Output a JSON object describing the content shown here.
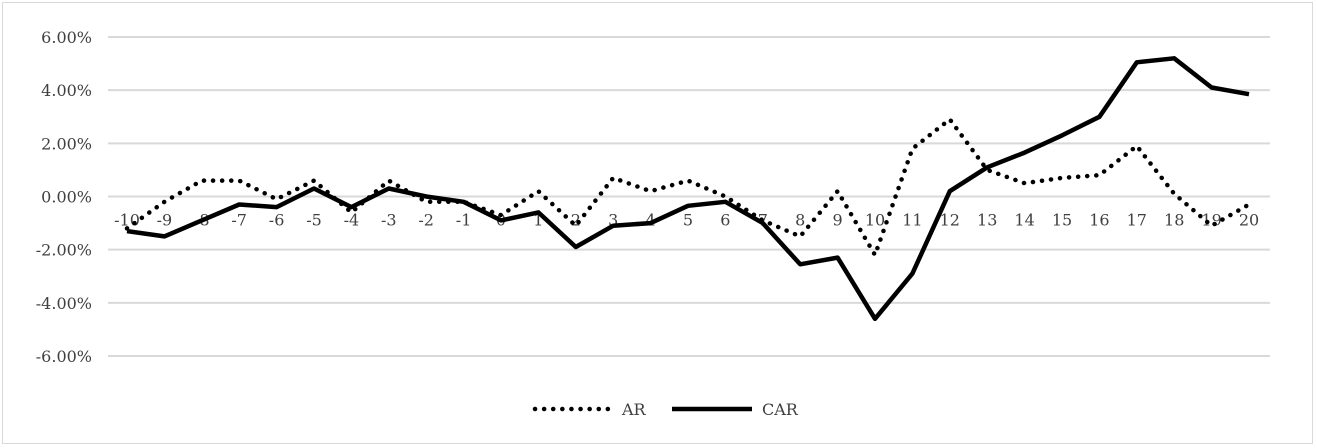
{
  "chart_data": {
    "type": "line",
    "title": "",
    "xlabel": "",
    "ylabel": "",
    "x": [
      -10,
      -9,
      -8,
      -7,
      -6,
      -5,
      -4,
      -3,
      -2,
      -1,
      0,
      1,
      2,
      3,
      4,
      5,
      6,
      7,
      8,
      9,
      10,
      11,
      12,
      13,
      14,
      15,
      16,
      17,
      18,
      19,
      20
    ],
    "x_tick_labels": [
      "-10",
      "-9",
      "-8",
      "-7",
      "-6",
      "-5",
      "-4",
      "-3",
      "-2",
      "-1",
      "0",
      "1",
      "2",
      "3",
      "4",
      "5",
      "6",
      "7",
      "8",
      "9",
      "10",
      "11",
      "12",
      "13",
      "14",
      "15",
      "16",
      "17",
      "18",
      "19",
      "20"
    ],
    "ylim": [
      -6,
      6
    ],
    "y_ticks": [
      6,
      4,
      2,
      0,
      -2,
      -4,
      -6
    ],
    "y_tick_labels": [
      "6.00%",
      "4.00%",
      "2.00%",
      "0.00%",
      "-2.00%",
      "-4.00%",
      "-6.00%"
    ],
    "y_unit": "%",
    "grid": true,
    "legend_position": "bottom",
    "series": [
      {
        "name": "AR",
        "style": "dotted",
        "color": "#000000",
        "values": [
          -1.2,
          -0.2,
          0.6,
          0.6,
          -0.1,
          0.6,
          -0.6,
          0.6,
          -0.2,
          -0.2,
          -0.7,
          0.2,
          -1.1,
          0.7,
          0.2,
          0.6,
          0.0,
          -0.9,
          -1.5,
          0.2,
          -2.2,
          1.8,
          2.9,
          1.0,
          0.5,
          0.7,
          0.8,
          1.9,
          0.1,
          -1.1,
          -0.3
        ]
      },
      {
        "name": "CAR",
        "style": "solid",
        "color": "#000000",
        "values": [
          -1.3,
          -1.5,
          -0.9,
          -0.3,
          -0.4,
          0.3,
          -0.4,
          0.3,
          0.0,
          -0.2,
          -0.9,
          -0.6,
          -1.9,
          -1.1,
          -1.0,
          -0.35,
          -0.2,
          -1.0,
          -2.55,
          -2.3,
          -4.6,
          -2.9,
          0.2,
          1.1,
          1.65,
          2.3,
          3.0,
          5.05,
          5.2,
          4.1,
          3.85
        ]
      }
    ]
  }
}
